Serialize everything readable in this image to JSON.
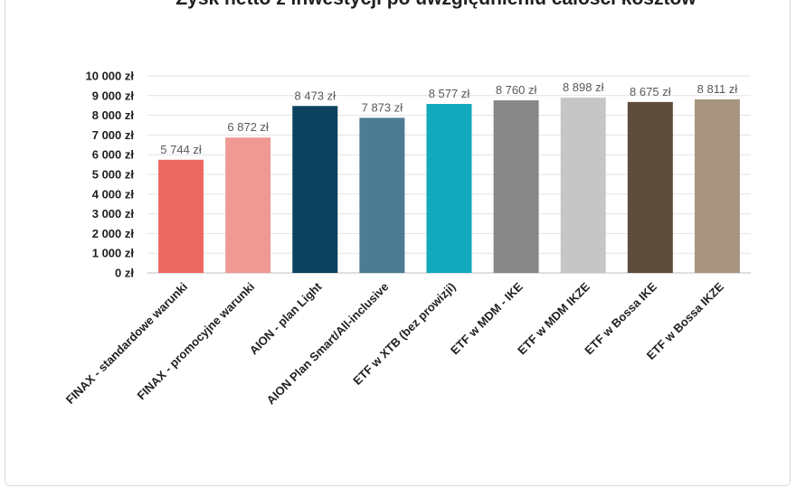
{
  "chart_data": {
    "type": "bar",
    "title": "Zysk netto z inwestycji po uwzględnieniu całości kosztów",
    "categories": [
      "FINAX - standardowe warunki",
      "FINAX - promocyjne warunki",
      "AION - plan Light",
      "AION Plan Smart/All-inclusive",
      "ETF w XTB (bez prowizji)",
      "ETF w MDM - IKE",
      "ETF w MDM IKZE",
      "ETF w Bossa IKE",
      "ETF w Bossa IKZE"
    ],
    "values": [
      5744,
      6872,
      8473,
      7873,
      8577,
      8760,
      8898,
      8675,
      8811
    ],
    "value_labels": [
      "5 744 zł",
      "6 872 zł",
      "8 473 zł",
      "7 873 zł",
      "8 577 zł",
      "8 760 zł",
      "8 898 zł",
      "8 675 zł",
      "8 811 zł"
    ],
    "bar_colors": [
      "#ec6863",
      "#ef9894",
      "#0c4260",
      "#4d7c92",
      "#12a9be",
      "#878787",
      "#c6c6c6",
      "#5e4c3c",
      "#a79580"
    ],
    "ylim": [
      0,
      10000
    ],
    "yticks": [
      0,
      1000,
      2000,
      3000,
      4000,
      5000,
      6000,
      7000,
      8000,
      9000,
      10000
    ],
    "ytick_labels": [
      "0 zł",
      "1 000 zł",
      "2 000 zł",
      "3 000 zł",
      "4 000 zł",
      "5 000 zł",
      "6 000 zł",
      "7 000 zł",
      "8 000 zł",
      "9 000 zł",
      "10 000 zł"
    ],
    "grid": true,
    "legend": "none"
  }
}
